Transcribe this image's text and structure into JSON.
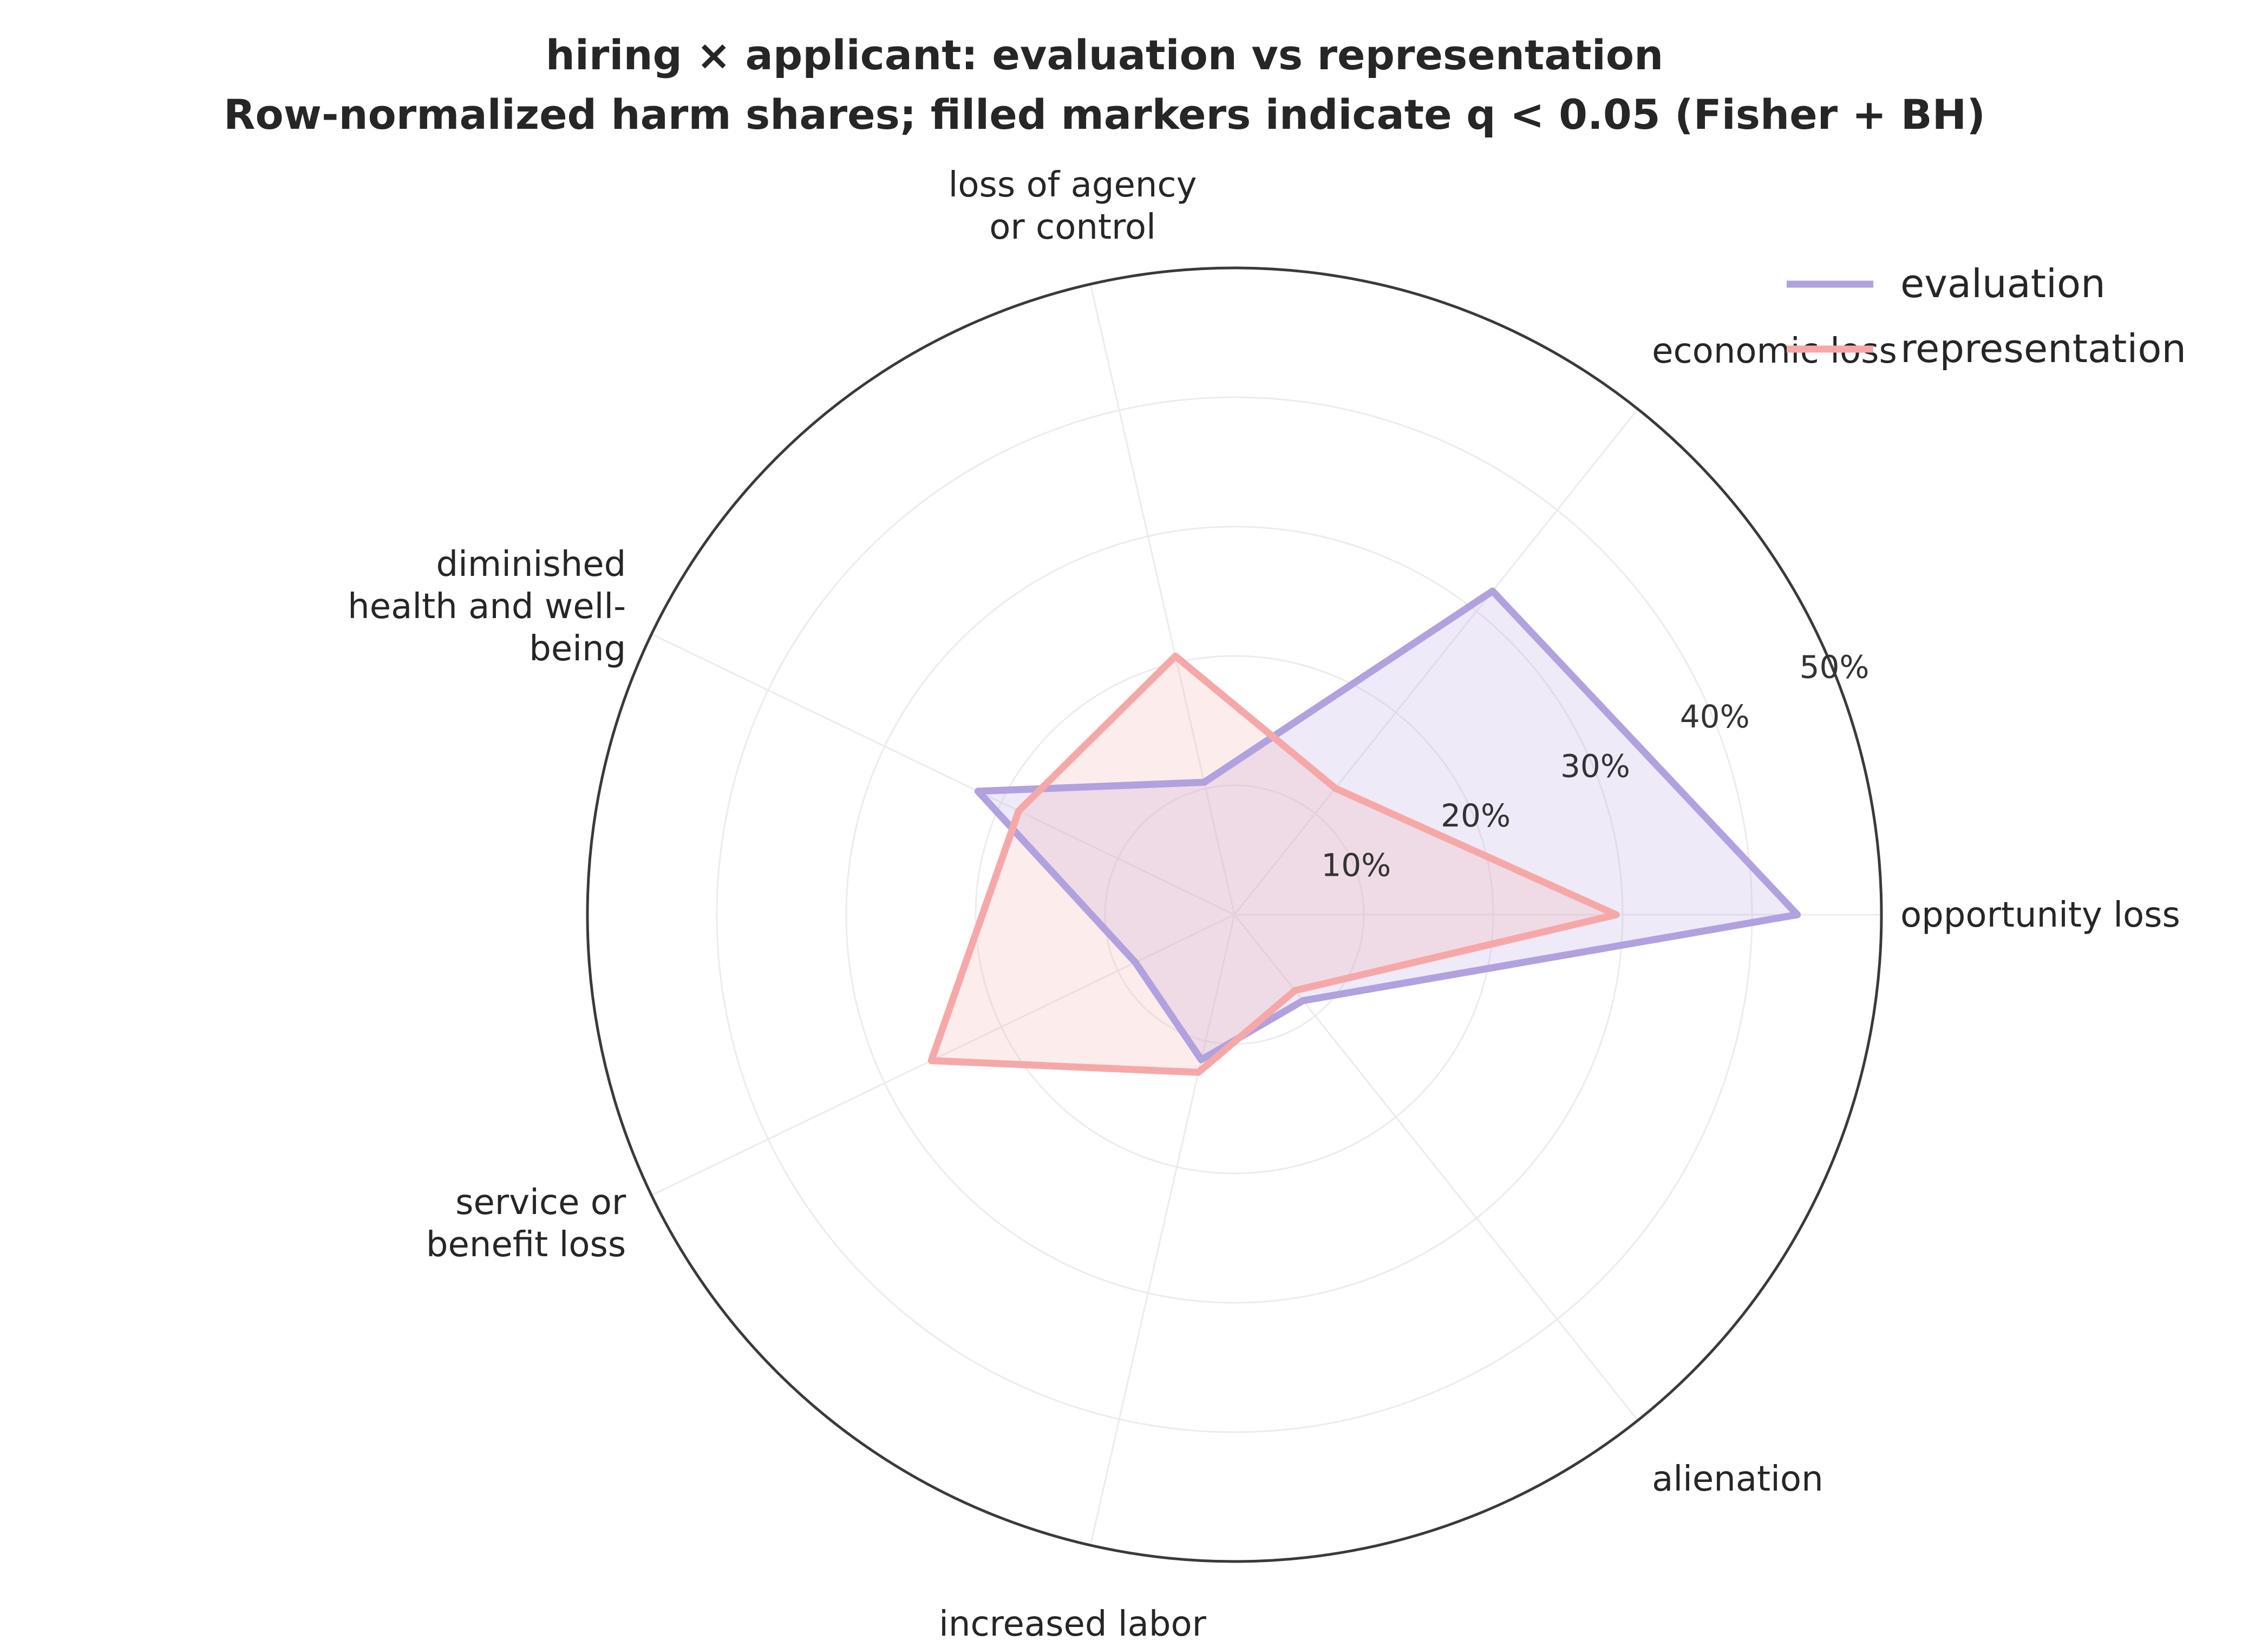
{
  "chart_data": {
    "type": "radar",
    "title": "hiring × applicant: evaluation vs representation",
    "subtitle": "Row-normalized harm shares; filled markers indicate q < 0.05 (Fisher + BH)",
    "axes": [
      {
        "lines": [
          "opportunity loss"
        ]
      },
      {
        "lines": [
          "economic loss"
        ]
      },
      {
        "lines": [
          "loss of agency",
          "or control"
        ]
      },
      {
        "lines": [
          "diminished",
          "health and well-",
          "being"
        ]
      },
      {
        "lines": [
          "service or",
          "benefit loss"
        ]
      },
      {
        "lines": [
          "increased labor"
        ]
      },
      {
        "lines": [
          "alienation"
        ]
      }
    ],
    "radial_ticks": [
      {
        "value": 10,
        "label": "10%"
      },
      {
        "value": 20,
        "label": "20%"
      },
      {
        "value": 30,
        "label": "30%"
      },
      {
        "value": 40,
        "label": "40%"
      },
      {
        "value": 50,
        "label": "50%"
      }
    ],
    "rmax": 50,
    "series": [
      {
        "name": "evaluation",
        "color": "#b1a1df",
        "values": [
          43.5,
          32.0,
          10.5,
          22.0,
          8.5,
          11.5,
          8.5
        ]
      },
      {
        "name": "representation",
        "color": "#f6a8a8",
        "values": [
          29.5,
          12.5,
          20.5,
          18.5,
          26.0,
          12.5,
          7.5
        ]
      }
    ],
    "legend_position": "top-right",
    "grid": true
  }
}
